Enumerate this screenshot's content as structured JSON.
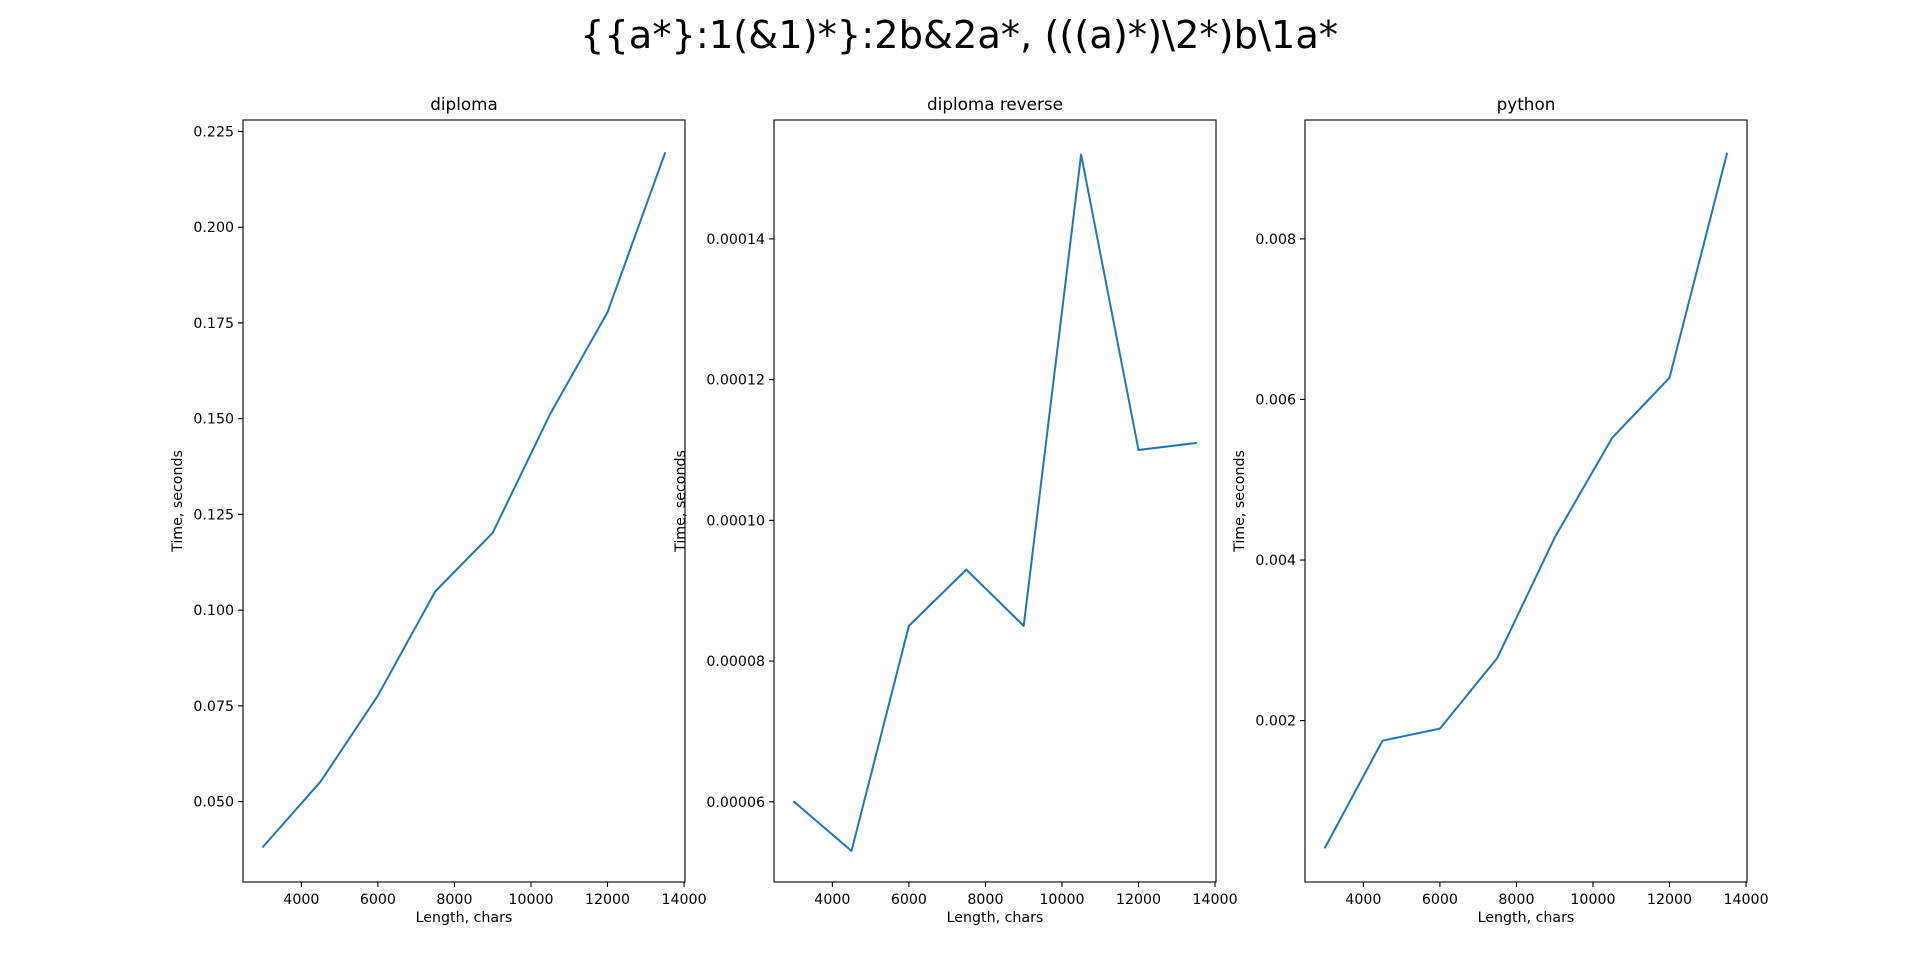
{
  "figure": {
    "suptitle": "{{a*}:1(&1)*}:2b&2a*, (((a)*)\\2*)b\\1a*"
  },
  "line_color": "#1f77b4",
  "chart_data": [
    {
      "type": "line",
      "title": "diploma",
      "xlabel": "Length, chars",
      "ylabel": "Time, seconds",
      "x": [
        3000,
        4500,
        6000,
        7500,
        9000,
        10500,
        12000,
        13500
      ],
      "series": [
        {
          "values": [
            0.0382,
            0.0552,
            0.0777,
            0.1049,
            0.1202,
            0.1512,
            0.1778,
            0.2193
          ]
        }
      ],
      "xlim": [
        2475,
        14025
      ],
      "ylim": [
        0.029,
        0.228
      ],
      "xticks": [
        4000,
        6000,
        8000,
        10000,
        12000,
        14000
      ],
      "xtick_labels": [
        "4000",
        "6000",
        "8000",
        "10000",
        "12000",
        "14000"
      ],
      "yticks": [
        0.05,
        0.075,
        0.1,
        0.125,
        0.15,
        0.175,
        0.2,
        0.225
      ],
      "ytick_labels": [
        "0.050",
        "0.075",
        "0.100",
        "0.125",
        "0.150",
        "0.175",
        "0.200",
        "0.225"
      ],
      "grid": false
    },
    {
      "type": "line",
      "title": "diploma reverse",
      "xlabel": "Length, chars",
      "ylabel": "Time, seconds",
      "x": [
        3000,
        4500,
        6000,
        7500,
        9000,
        10500,
        12000,
        13500
      ],
      "series": [
        {
          "values": [
            6e-05,
            5.3e-05,
            8.5e-05,
            9.3e-05,
            8.5e-05,
            0.000152,
            0.00011,
            0.000111
          ]
        }
      ],
      "xlim": [
        2475,
        14025
      ],
      "ylim": [
        4.86e-05,
        0.0001569
      ],
      "xticks": [
        4000,
        6000,
        8000,
        10000,
        12000,
        14000
      ],
      "xtick_labels": [
        "4000",
        "6000",
        "8000",
        "10000",
        "12000",
        "14000"
      ],
      "yticks": [
        6e-05,
        8e-05,
        0.0001,
        0.00012,
        0.00014
      ],
      "ytick_labels": [
        "0.00006",
        "0.00008",
        "0.00010",
        "0.00012",
        "0.00014"
      ],
      "grid": false
    },
    {
      "type": "line",
      "title": "python",
      "xlabel": "Length, chars",
      "ylabel": "Time, seconds",
      "x": [
        3000,
        4500,
        6000,
        7500,
        9000,
        10500,
        12000,
        13500
      ],
      "series": [
        {
          "values": [
            0.00042,
            0.00175,
            0.0019,
            0.00278,
            0.00428,
            0.00552,
            0.00627,
            0.00906
          ]
        }
      ],
      "xlim": [
        2475,
        14025
      ],
      "ylim": [
        -1e-05,
        0.00948
      ],
      "xticks": [
        4000,
        6000,
        8000,
        10000,
        12000,
        14000
      ],
      "xtick_labels": [
        "4000",
        "6000",
        "8000",
        "10000",
        "12000",
        "14000"
      ],
      "yticks": [
        0.002,
        0.004,
        0.006,
        0.008
      ],
      "ytick_labels": [
        "0.002",
        "0.004",
        "0.006",
        "0.008"
      ],
      "grid": false
    }
  ]
}
